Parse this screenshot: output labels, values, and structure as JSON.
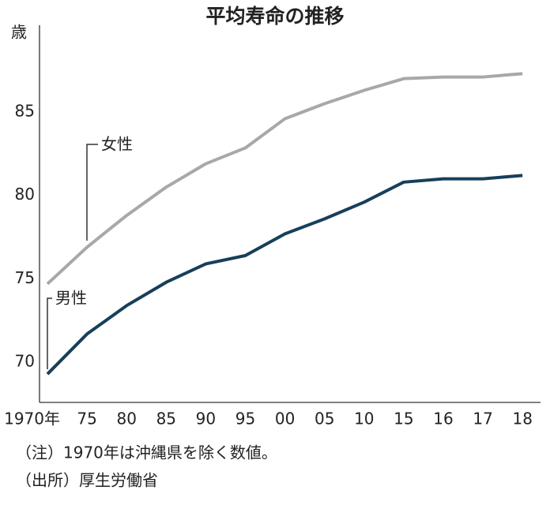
{
  "chart_data": {
    "type": "line",
    "title": "平均寿命の推移",
    "y_label": "歳",
    "categories": [
      "1970年",
      "75",
      "80",
      "85",
      "90",
      "95",
      "00",
      "05",
      "10",
      "15",
      "16",
      "17",
      "18"
    ],
    "series": [
      {
        "name": "女性",
        "color": "#a8a8ac",
        "values": [
          74.7,
          76.9,
          78.8,
          80.5,
          81.9,
          82.85,
          84.6,
          85.5,
          86.3,
          87.0,
          87.1,
          87.1,
          87.3
        ]
      },
      {
        "name": "男性",
        "color": "#173f5a",
        "values": [
          69.3,
          71.7,
          73.4,
          74.8,
          75.9,
          76.4,
          77.7,
          78.6,
          79.6,
          80.8,
          81.0,
          81.0,
          81.2
        ]
      }
    ],
    "ylim": [
      67.6,
      90.2
    ],
    "yticks": [
      70,
      75,
      80,
      85
    ],
    "grid": false,
    "notes": [
      "（注）1970年は沖縄県を除く数値。",
      "（出所）厚生労働省"
    ]
  }
}
